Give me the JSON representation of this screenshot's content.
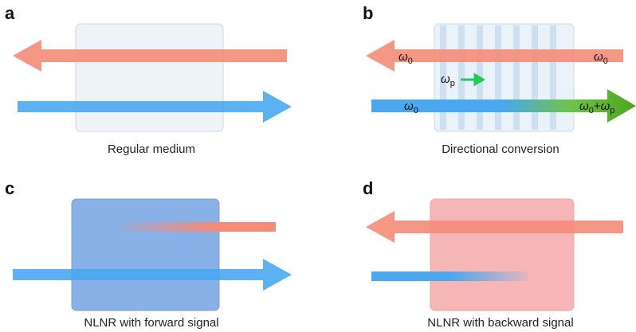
{
  "panels": [
    {
      "letter": "a",
      "caption": "Regular medium"
    },
    {
      "letter": "b",
      "caption": "Directional conversion",
      "labels": [
        {
          "symbol": "ω",
          "sub": "0"
        },
        {
          "symbol": "ω",
          "sub": "0"
        },
        {
          "symbol": "ω",
          "sub": "p"
        },
        {
          "symbol": "ω",
          "sub": "0"
        },
        {
          "symbol": "ω",
          "sub": "0",
          "plus": "+",
          "symbol2": "ω",
          "sub2": "p"
        }
      ]
    },
    {
      "letter": "c",
      "caption": "NLNR with forward signal"
    },
    {
      "letter": "d",
      "caption": "NLNR with backward signal"
    }
  ]
}
